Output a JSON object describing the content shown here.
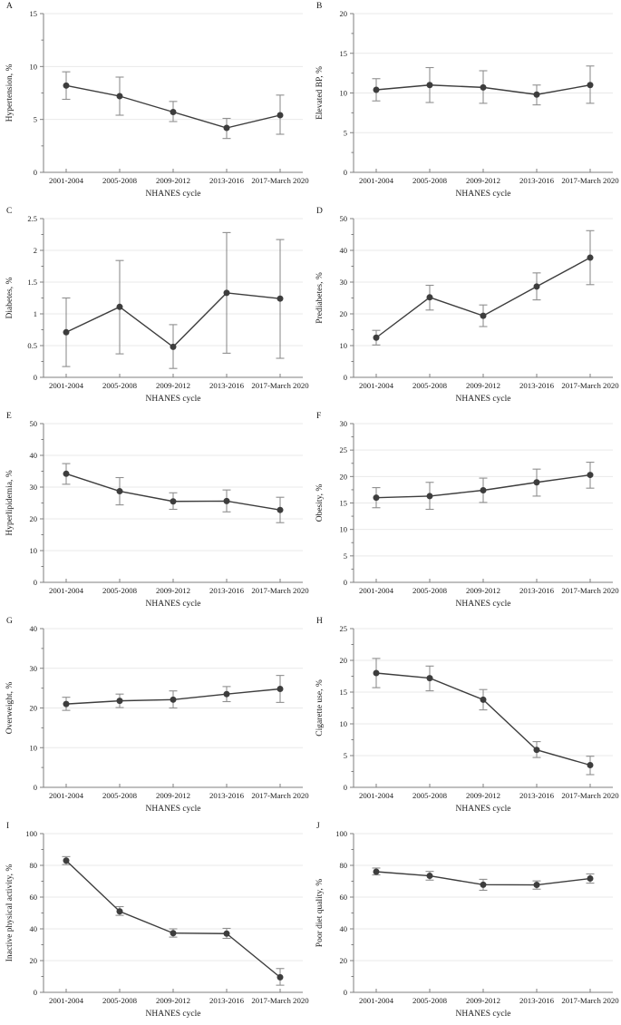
{
  "figure": {
    "background": "#ffffff",
    "x_axis_label": "NHANES cycle",
    "categories": [
      "2001-2004",
      "2005-2008",
      "2009-2012",
      "2013-2016",
      "2017-March 2020"
    ],
    "colors": {
      "series": "#3d3d3d",
      "point": "#3d3d3d",
      "error_bar": "#8f8f8f",
      "axis": "#7f7f7f",
      "grid": "#e9e9e9",
      "text": "#1a1a1a"
    }
  },
  "chart_data": [
    {
      "type": "line",
      "panel": "A",
      "ylabel": "Hypertension, %",
      "xlabel": "NHANES cycle",
      "categories": [
        "2001-2004",
        "2005-2008",
        "2009-2012",
        "2013-2016",
        "2017-March 2020"
      ],
      "values": [
        8.2,
        7.2,
        5.7,
        4.2,
        5.4
      ],
      "ci_low": [
        6.9,
        5.4,
        4.8,
        3.2,
        3.6
      ],
      "ci_high": [
        9.5,
        9.0,
        6.7,
        5.1,
        7.3
      ],
      "ylim": [
        0,
        15
      ],
      "yticks": [
        0,
        5,
        10,
        15
      ],
      "grid": true,
      "error_bars": true
    },
    {
      "type": "line",
      "panel": "B",
      "ylabel": "Elevated BP, %",
      "xlabel": "NHANES cycle",
      "categories": [
        "2001-2004",
        "2005-2008",
        "2009-2012",
        "2013-2016",
        "2017-March 2020"
      ],
      "values": [
        10.4,
        11.0,
        10.7,
        9.8,
        11.0
      ],
      "ci_low": [
        9.0,
        8.8,
        8.7,
        8.5,
        8.7
      ],
      "ci_high": [
        11.8,
        13.2,
        12.8,
        11.0,
        13.4
      ],
      "ylim": [
        0,
        20
      ],
      "yticks": [
        0,
        5,
        10,
        15,
        20
      ],
      "grid": true,
      "error_bars": true
    },
    {
      "type": "line",
      "panel": "C",
      "ylabel": "Diabetes, %",
      "xlabel": "NHANES cycle",
      "categories": [
        "2001-2004",
        "2005-2008",
        "2009-2012",
        "2013-2016",
        "2017-March 2020"
      ],
      "values": [
        0.71,
        1.11,
        0.48,
        1.33,
        1.24
      ],
      "ci_low": [
        0.17,
        0.37,
        0.14,
        0.38,
        0.3
      ],
      "ci_high": [
        1.25,
        1.84,
        0.83,
        2.28,
        2.17
      ],
      "ylim": [
        0,
        2.5
      ],
      "yticks": [
        0,
        0.5,
        1,
        1.5,
        2,
        2.5
      ],
      "grid": true,
      "error_bars": true
    },
    {
      "type": "line",
      "panel": "D",
      "ylabel": "Prediabetes, %",
      "xlabel": "NHANES cycle",
      "categories": [
        "2001-2004",
        "2005-2008",
        "2009-2012",
        "2013-2016",
        "2017-March 2020"
      ],
      "values": [
        12.5,
        25.2,
        19.4,
        28.6,
        37.7
      ],
      "ci_low": [
        10.2,
        21.2,
        16.0,
        24.4,
        29.2
      ],
      "ci_high": [
        14.8,
        29.0,
        22.8,
        32.9,
        46.2
      ],
      "ylim": [
        0,
        50
      ],
      "yticks": [
        0,
        10,
        20,
        30,
        40,
        50
      ],
      "grid": true,
      "error_bars": true
    },
    {
      "type": "line",
      "panel": "E",
      "ylabel": "Hyperlipidemia, %",
      "xlabel": "NHANES cycle",
      "categories": [
        "2001-2004",
        "2005-2008",
        "2009-2012",
        "2013-2016",
        "2017-March 2020"
      ],
      "values": [
        34.2,
        28.7,
        25.5,
        25.6,
        22.8
      ],
      "ci_low": [
        30.9,
        24.4,
        23.0,
        22.2,
        18.8
      ],
      "ci_high": [
        37.4,
        33.0,
        28.2,
        29.1,
        26.8
      ],
      "ylim": [
        0,
        50
      ],
      "yticks": [
        0,
        10,
        20,
        30,
        40,
        50
      ],
      "grid": true,
      "error_bars": true
    },
    {
      "type": "line",
      "panel": "F",
      "ylabel": "Obesity, %",
      "xlabel": "NHANES cycle",
      "categories": [
        "2001-2004",
        "2005-2008",
        "2009-2012",
        "2013-2016",
        "2017-March 2020"
      ],
      "values": [
        16.0,
        16.3,
        17.4,
        18.9,
        20.3
      ],
      "ci_low": [
        14.1,
        13.8,
        15.1,
        16.3,
        17.8
      ],
      "ci_high": [
        17.9,
        18.9,
        19.7,
        21.4,
        22.7
      ],
      "ylim": [
        0,
        30
      ],
      "yticks": [
        0,
        5,
        10,
        15,
        20,
        25,
        30
      ],
      "grid": true,
      "error_bars": true
    },
    {
      "type": "line",
      "panel": "G",
      "ylabel": "Overweight, %",
      "xlabel": "NHANES cycle",
      "categories": [
        "2001-2004",
        "2005-2008",
        "2009-2012",
        "2013-2016",
        "2017-March 2020"
      ],
      "values": [
        21.0,
        21.8,
        22.1,
        23.5,
        24.8
      ],
      "ci_low": [
        19.4,
        20.1,
        20.0,
        21.6,
        21.4
      ],
      "ci_high": [
        22.7,
        23.5,
        24.3,
        25.4,
        28.2
      ],
      "ylim": [
        0,
        40
      ],
      "yticks": [
        0,
        10,
        20,
        30,
        40
      ],
      "grid": true,
      "error_bars": true
    },
    {
      "type": "line",
      "panel": "H",
      "ylabel": "Cigarette use, %",
      "xlabel": "NHANES cycle",
      "categories": [
        "2001-2004",
        "2005-2008",
        "2009-2012",
        "2013-2016",
        "2017-March 2020"
      ],
      "values": [
        18.0,
        17.2,
        13.8,
        5.9,
        3.5
      ],
      "ci_low": [
        15.7,
        15.2,
        12.2,
        4.7,
        2.0
      ],
      "ci_high": [
        20.3,
        19.1,
        15.4,
        7.2,
        4.9
      ],
      "ylim": [
        0,
        25
      ],
      "yticks": [
        0,
        5,
        10,
        15,
        20,
        25
      ],
      "grid": true,
      "error_bars": true
    },
    {
      "type": "line",
      "panel": "I",
      "ylabel": "Inactive physical activity, %",
      "xlabel": "NHANES cycle",
      "categories": [
        "2001-2004",
        "2005-2008",
        "2009-2012",
        "2013-2016",
        "2017-March 2020"
      ],
      "values": [
        83.0,
        51.0,
        37.3,
        37.0,
        9.5
      ],
      "ci_low": [
        80.5,
        48.5,
        34.8,
        34.0,
        4.5
      ],
      "ci_high": [
        85.5,
        54.0,
        40.0,
        40.3,
        15.0
      ],
      "ylim": [
        0,
        100
      ],
      "yticks": [
        0,
        20,
        40,
        60,
        80,
        100
      ],
      "grid": true,
      "error_bars": true
    },
    {
      "type": "line",
      "panel": "J",
      "ylabel": "Poor diet quality, %",
      "xlabel": "NHANES cycle",
      "categories": [
        "2001-2004",
        "2005-2008",
        "2009-2012",
        "2013-2016",
        "2017-March 2020"
      ],
      "values": [
        76.0,
        73.4,
        67.8,
        67.7,
        71.7
      ],
      "ci_low": [
        74.0,
        70.7,
        64.3,
        65.0,
        68.8
      ],
      "ci_high": [
        78.3,
        76.2,
        71.2,
        70.2,
        74.6
      ],
      "ylim": [
        0,
        100
      ],
      "yticks": [
        0,
        20,
        40,
        60,
        80,
        100
      ],
      "grid": true,
      "error_bars": true
    }
  ]
}
